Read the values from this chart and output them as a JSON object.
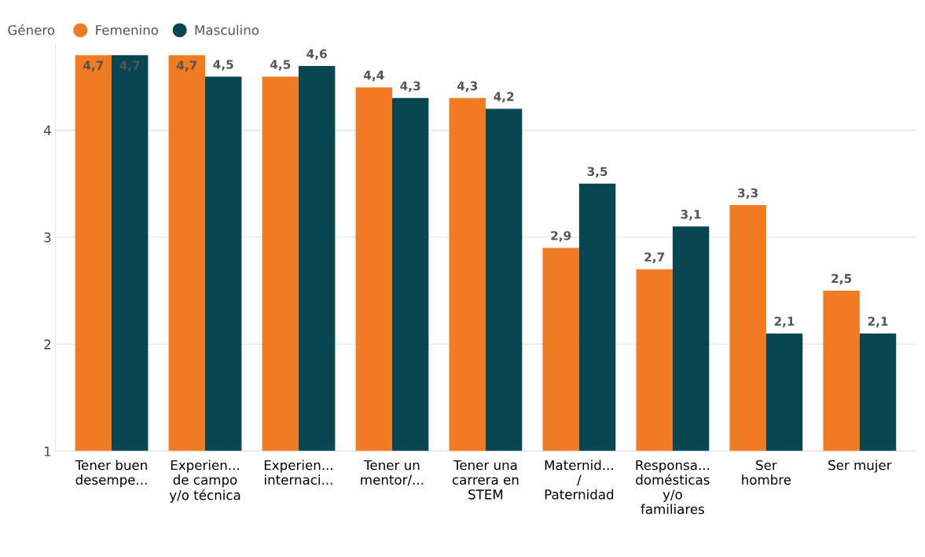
{
  "chart_data": {
    "type": "bar",
    "legend_title": "Género",
    "legend": "top left",
    "grid": "y",
    "categories": [
      "Tener buen\ndesempe...",
      "Experien...\nde campo\ny/o técnica",
      "Experien...\ninternaci...",
      "Tener un\nmentor/...",
      "Tener una\ncarrera en\nSTEM",
      "Maternid...\n/\nPaternidad",
      "Responsa...\ndomésticas\ny/o\nfamiliares",
      "Ser\nhombre",
      "Ser mujer"
    ],
    "series": [
      {
        "name": "Femenino",
        "color": "#f07b22",
        "values": [
          4.7,
          4.7,
          4.5,
          4.4,
          4.3,
          2.9,
          2.7,
          3.3,
          2.5
        ],
        "value_labels": [
          "4,7",
          "4,7",
          "4,5",
          "4,4",
          "4,3",
          "2,9",
          "2,7",
          "3,3",
          "2,5"
        ]
      },
      {
        "name": "Masculino",
        "color": "#084752",
        "values": [
          4.7,
          4.5,
          4.6,
          4.3,
          4.2,
          3.5,
          3.1,
          2.1,
          2.1
        ],
        "value_labels": [
          "4,7",
          "4,5",
          "4,6",
          "4,3",
          "4,2",
          "3,5",
          "3,1",
          "2,1",
          "2,1"
        ]
      }
    ],
    "ylim": [
      1,
      4.8
    ],
    "yticks": [
      1,
      2,
      3,
      4
    ]
  }
}
